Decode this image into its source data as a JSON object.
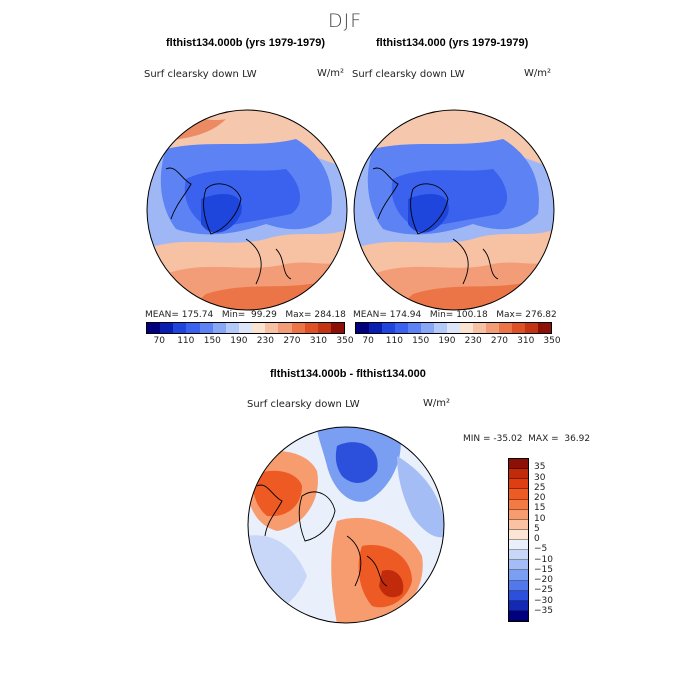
{
  "figure": {
    "title": "DJF",
    "unit_label": "W/m²"
  },
  "panels": [
    {
      "title": "flthist134.000b (yrs 1979-1979)",
      "variable": "Surf clearsky down LW",
      "units": "W/m²",
      "stats": "MEAN= 175.74   Min=  99.29   Max= 284.18"
    },
    {
      "title": "flthist134.000 (yrs 1979-1979)",
      "variable": "Surf clearsky down LW",
      "units": "W/m²",
      "stats": "MEAN= 174.94   Min= 100.18   Max= 276.82"
    }
  ],
  "abs_colorbar": {
    "ticks": [
      "70",
      "110",
      "150",
      "190",
      "230",
      "270",
      "310",
      "350"
    ],
    "colors": [
      "#00007f",
      "#0a1fb0",
      "#1f46dc",
      "#3a62ef",
      "#5d82f3",
      "#88a6f6",
      "#b4c9f7",
      "#dde6f8",
      "#fbe3d2",
      "#f7c2a4",
      "#f29d77",
      "#ec7547",
      "#de5026",
      "#c23412",
      "#8c1006"
    ]
  },
  "diff_panel": {
    "title": "flthist134.000b - flthist134.000",
    "variable": "Surf clearsky down LW",
    "units": "W/m²",
    "minmax": "MIN = -35.02  MAX =  36.92",
    "colorbar_ticks": [
      "35",
      "30",
      "25",
      "20",
      "15",
      "10",
      "5",
      "0",
      "−5",
      "−10",
      "−15",
      "−20",
      "−25",
      "−30",
      "−35"
    ],
    "colorbar_colors": [
      "#8c1006",
      "#c22a0c",
      "#df3d12",
      "#ee5a24",
      "#f47a44",
      "#f79c6f",
      "#f9c2a3",
      "#fbe6d6",
      "#eaf0fb",
      "#c8d6f8",
      "#a4bdf5",
      "#7a9ef2",
      "#5278ec",
      "#2d50dc",
      "#1329b4",
      "#00007f"
    ]
  },
  "chart_data": [
    {
      "type": "heatmap",
      "title": "flthist134.000b (yrs 1979-1979)",
      "projection": "north polar stereographic",
      "variable": "Surf clearsky down LW",
      "units": "W/m2",
      "mean": 175.74,
      "min": 99.29,
      "max": 284.18,
      "levels": [
        70,
        110,
        150,
        190,
        230,
        270,
        310,
        350
      ]
    },
    {
      "type": "heatmap",
      "title": "flthist134.000 (yrs 1979-1979)",
      "projection": "north polar stereographic",
      "variable": "Surf clearsky down LW",
      "units": "W/m2",
      "mean": 174.94,
      "min": 100.18,
      "max": 276.82,
      "levels": [
        70,
        110,
        150,
        190,
        230,
        270,
        310,
        350
      ]
    },
    {
      "type": "heatmap",
      "title": "flthist134.000b - flthist134.000",
      "projection": "north polar stereographic",
      "variable": "Surf clearsky down LW",
      "units": "W/m2",
      "min": -35.02,
      "max": 36.92,
      "levels": [
        -35,
        -30,
        -25,
        -20,
        -15,
        -10,
        -5,
        0,
        5,
        10,
        15,
        20,
        25,
        30,
        35
      ]
    }
  ]
}
